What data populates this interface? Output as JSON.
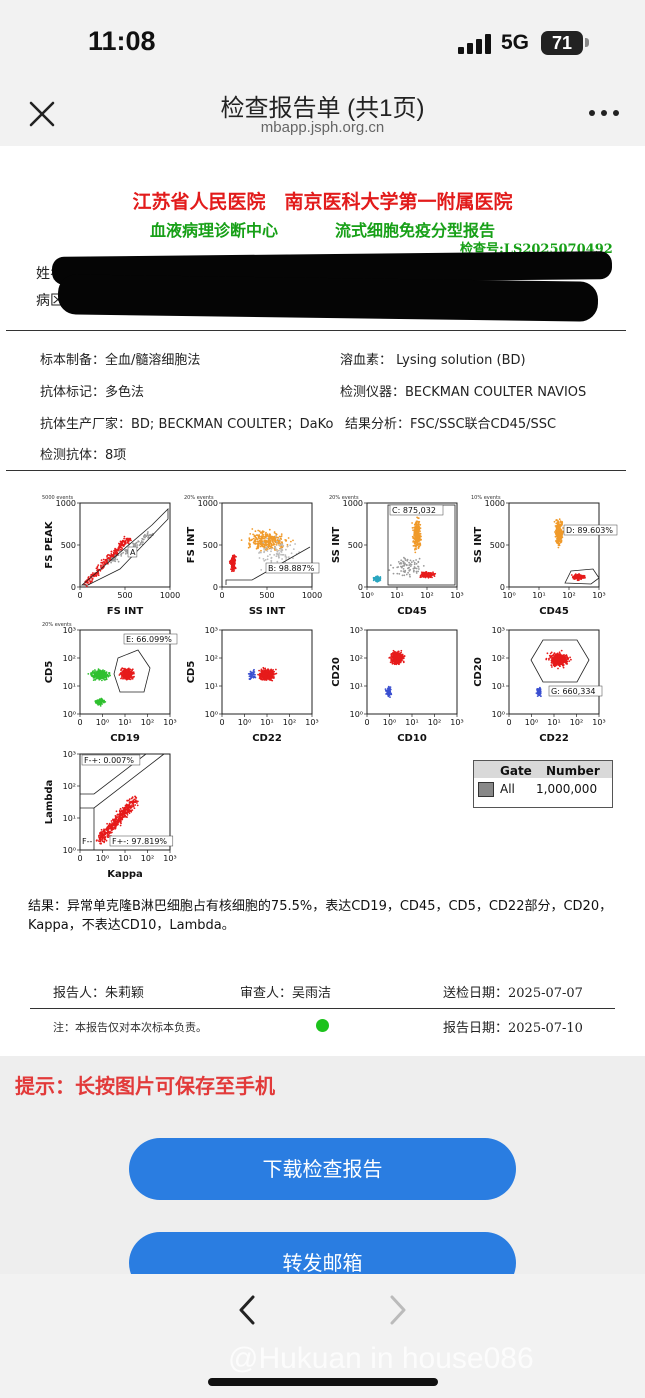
{
  "status_bar": {
    "time": "11:08",
    "network": "5G",
    "battery": "71"
  },
  "nav": {
    "title": "检查报告单 (共1页)",
    "subtitle": "mbapp.jsph.org.cn"
  },
  "report": {
    "hospital": "江苏省人民医院　南京医科大学第一附属医院",
    "center": "血液病理诊断中心",
    "report_type": "流式细胞免疫分型报告",
    "exam_no": "检查号:LS2025070492",
    "name_label": "姓名",
    "dept_label": "病区",
    "info": {
      "specimen": "标本制备：全血/髓溶细胞法",
      "lysing": "溶血素： Lysing solution (BD)",
      "antibody_label": "抗体标记：多色法",
      "instrument": "检测仪器：BECKMAN COULTER NAVIOS",
      "manufacturer": "抗体生产厂家：BD; BECKMAN COULTER；DaKo",
      "analysis": "结果分析：FSC/SSC联合CD45/SSC",
      "antibody_count": "检测抗体：8项"
    },
    "plots": [
      {
        "x_label": "FS INT",
        "y_label": "FS PEAK",
        "events": "5000 events",
        "gate": "A",
        "x_ticks": [
          "0",
          "500",
          "1000"
        ],
        "y_ticks": [
          "0",
          "500",
          "1000"
        ]
      },
      {
        "x_label": "SS INT",
        "y_label": "FS INT",
        "events": "20% events",
        "gate": "B: 98.887%",
        "x_ticks": [
          "0",
          "500",
          "1000"
        ],
        "y_ticks": [
          "0",
          "500",
          "1000"
        ]
      },
      {
        "x_label": "CD45",
        "y_label": "SS INT",
        "events": "20% events",
        "gate": "C: 875,032",
        "x_ticks": [
          "10⁰",
          "10¹",
          "10²",
          "10³"
        ],
        "y_ticks": [
          "0",
          "500",
          "1000"
        ]
      },
      {
        "x_label": "CD45",
        "y_label": "SS INT",
        "events": "10% events",
        "gate": "D: 89.603%",
        "x_ticks": [
          "10⁰",
          "10¹",
          "10²",
          "10³"
        ],
        "y_ticks": [
          "0",
          "500",
          "1000"
        ]
      },
      {
        "x_label": "CD19",
        "y_label": "CD5",
        "events": "20% events",
        "gate": "E: 66.099%",
        "x_ticks": [
          "0",
          "10⁰",
          "10¹",
          "10²",
          "10³"
        ],
        "y_ticks": [
          "10⁰",
          "10¹",
          "10²",
          "10³"
        ]
      },
      {
        "x_label": "CD22",
        "y_label": "CD5",
        "events": "",
        "gate": "",
        "x_ticks": [
          "0",
          "10⁰",
          "10¹",
          "10²",
          "10³"
        ],
        "y_ticks": [
          "10⁰",
          "10¹",
          "10²",
          "10³"
        ]
      },
      {
        "x_label": "CD10",
        "y_label": "CD20",
        "events": "",
        "gate": "",
        "x_ticks": [
          "0",
          "10⁰",
          "10¹",
          "10²",
          "10³"
        ],
        "y_ticks": [
          "10⁰",
          "10¹",
          "10²",
          "10³"
        ]
      },
      {
        "x_label": "CD22",
        "y_label": "CD20",
        "events": "",
        "gate": "G: 660,334",
        "x_ticks": [
          "0",
          "10⁰",
          "10¹",
          "10²",
          "10³"
        ],
        "y_ticks": [
          "10⁰",
          "10¹",
          "10²",
          "10³"
        ]
      },
      {
        "x_label": "Kappa",
        "y_label": "Lambda",
        "events": "",
        "gate": "F-+: 0.007%",
        "gate2": "F+-: 97.819%",
        "gate3": "F--",
        "x_ticks": [
          "0",
          "10⁰",
          "10¹",
          "10²",
          "10³"
        ],
        "y_ticks": [
          "10⁰",
          "10¹",
          "10²",
          "10³"
        ]
      }
    ],
    "gate_table": {
      "col_gate": "Gate",
      "col_number": "Number",
      "gate": "All",
      "number": "1,000,000"
    },
    "result": "结果：异常单克隆B淋巴细胞占有核细胞的75.5%，表达CD19，CD45，CD5，CD22部分，CD20，Kappa，不表达CD10，Lambda。",
    "reporter": "报告人：朱莉颖",
    "reviewer": "审查人：吴雨洁",
    "submit_date": "送检日期：2025-07-07",
    "note": "注：本报告仅对本次标本负责。",
    "report_date": "报告日期：2025-07-10"
  },
  "colors": {
    "red": "#e61b1b",
    "orange": "#f09a2a",
    "green": "#2fc02f",
    "blue": "#3a4fd0",
    "cyan": "#2aa6c0",
    "accent": "#2a7de1"
  },
  "tip": "提示：长按图片可保存至手机",
  "buttons": {
    "download": "下载检查报告",
    "forward": "转发邮箱"
  },
  "watermark": "@Hukuan in house086"
}
